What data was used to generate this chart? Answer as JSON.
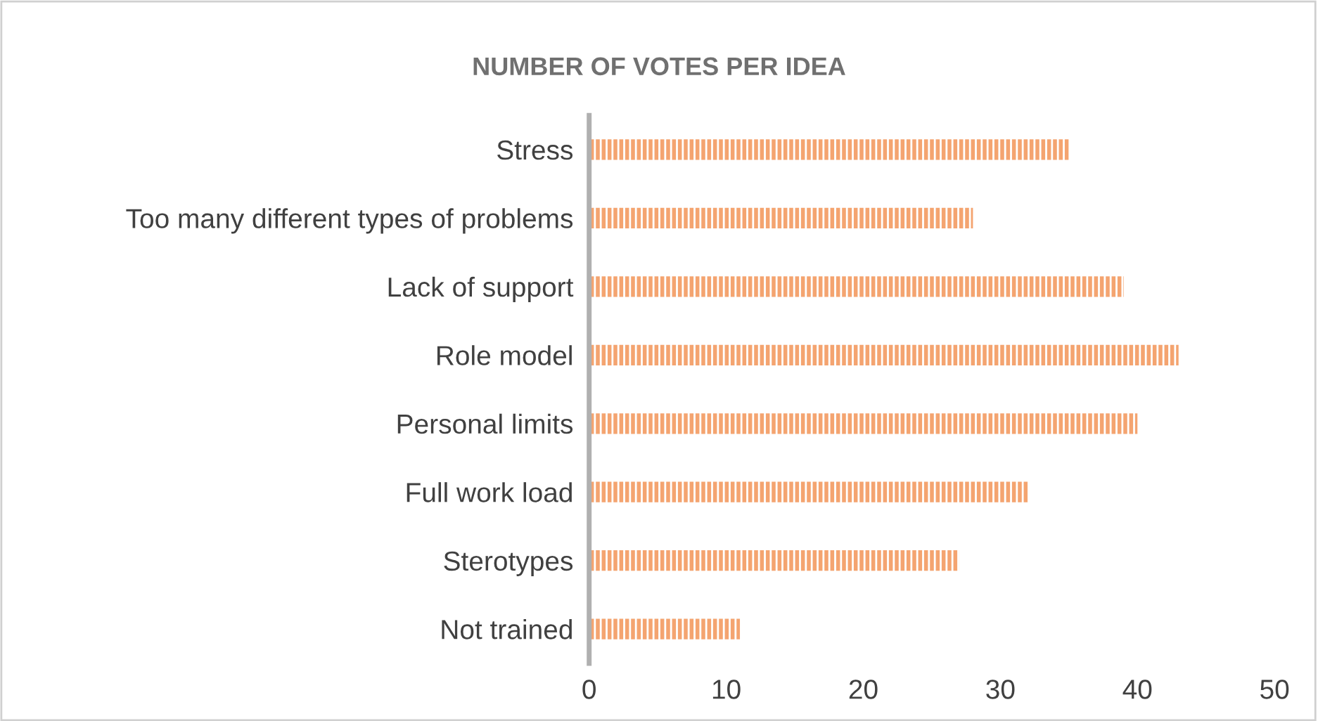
{
  "chart_data": {
    "type": "bar",
    "title": "NUMBER OF VOTES PER IDEA",
    "orientation": "horizontal",
    "categories": [
      "Stress",
      "Too many different types of problems",
      "Lack of support",
      "Role model",
      "Personal limits",
      "Full work load",
      "Sterotypes",
      "Not trained"
    ],
    "values": [
      35,
      28,
      39,
      43,
      40,
      32,
      27,
      11
    ],
    "color": "#f4a470",
    "xlim": [
      0,
      50
    ],
    "xticks": [
      0,
      10,
      20,
      30,
      40,
      50
    ],
    "grid": false
  }
}
